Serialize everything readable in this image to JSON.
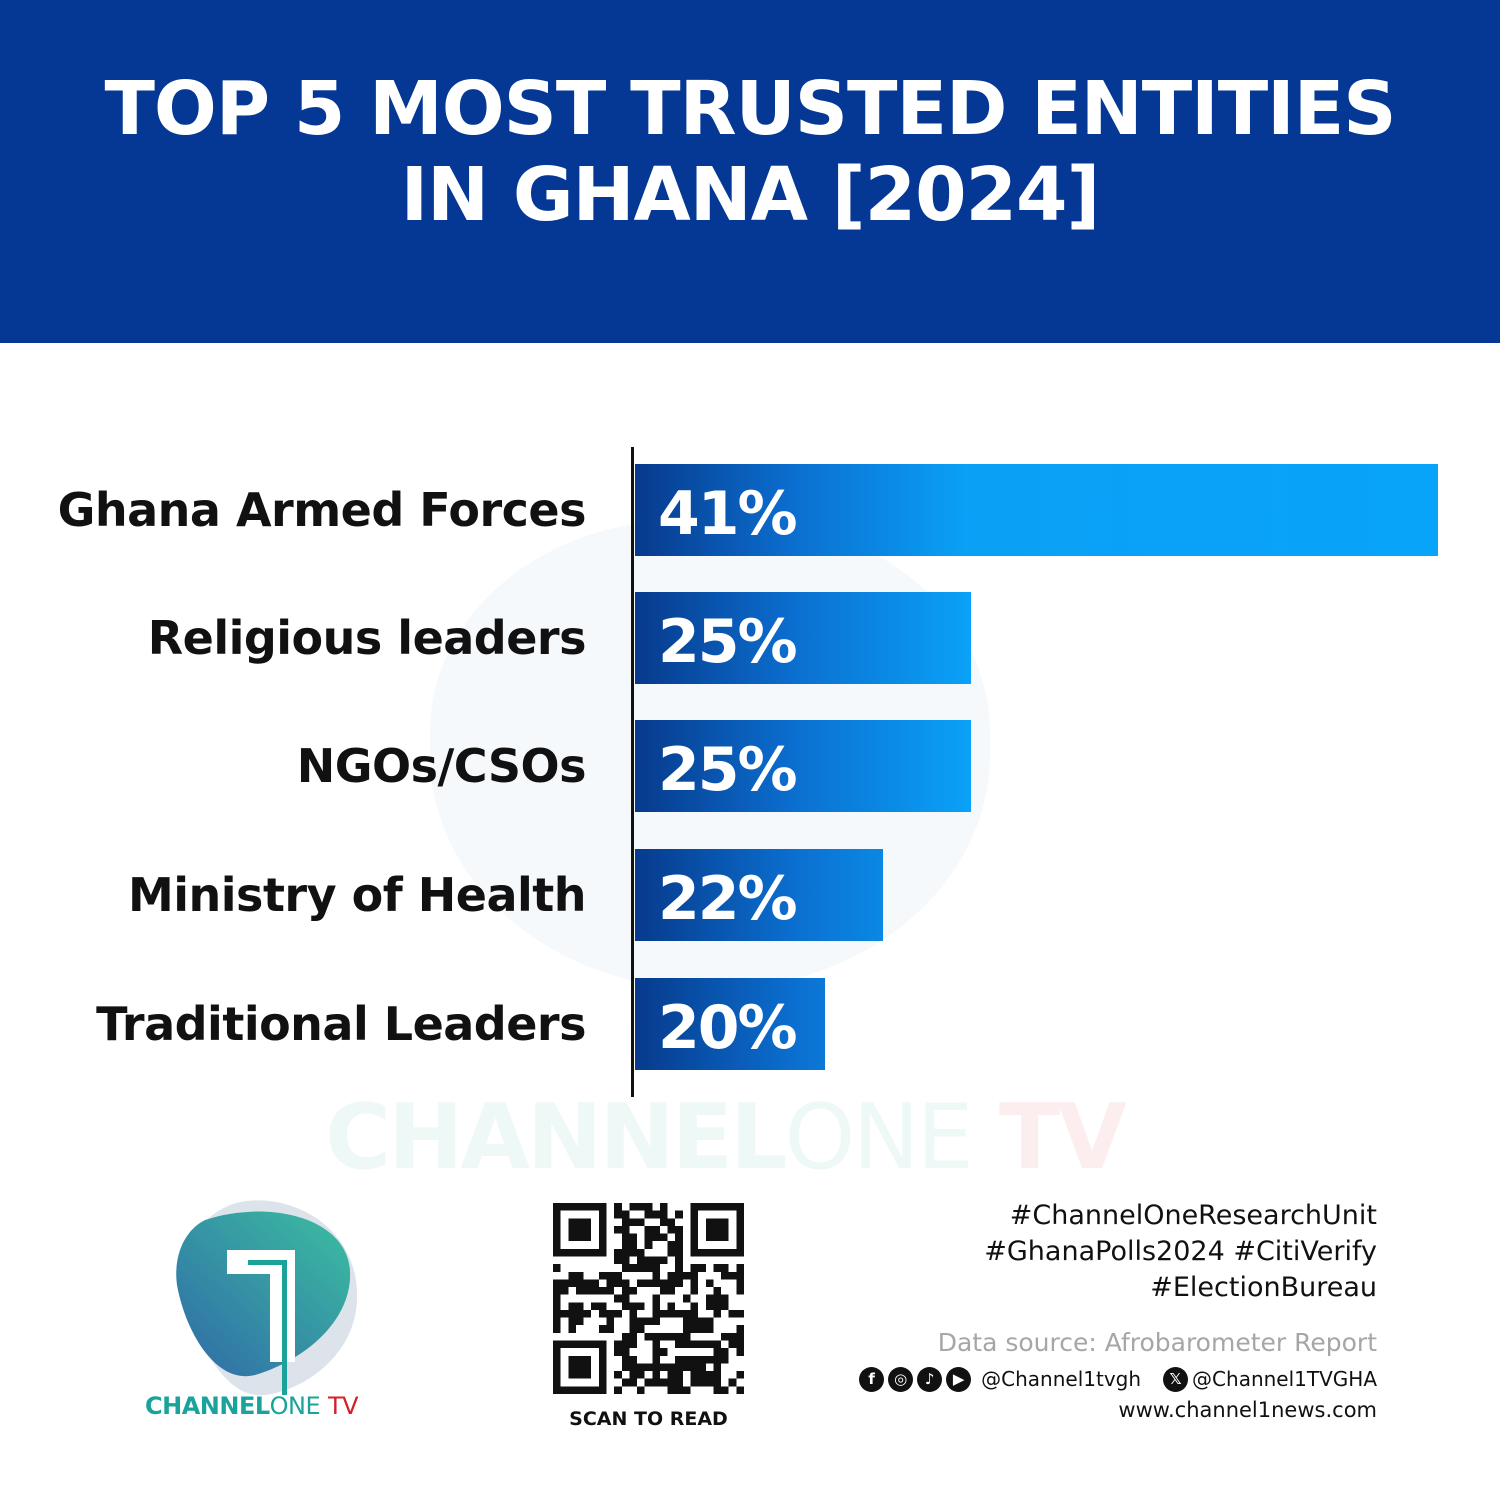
{
  "header": {
    "title_line1": "TOP 5 MOST TRUSTED ENTITIES",
    "title_line2": "IN GHANA [2024]"
  },
  "chart_data": {
    "type": "bar",
    "orientation": "horizontal",
    "title": "TOP 5 MOST TRUSTED ENTITIES IN GHANA [2024]",
    "categories": [
      "Ghana Armed Forces",
      "Religious leaders",
      "NGOs/CSOs",
      "Ministry of Health",
      "Traditional Leaders"
    ],
    "values": [
      41,
      25,
      25,
      22,
      20
    ],
    "value_labels": [
      "41%",
      "25%",
      "25%",
      "22%",
      "20%"
    ],
    "unit": "%",
    "grid": false,
    "bar_color": "#08a4fa",
    "bar_gradient_start": "#073a8c"
  },
  "watermark": {
    "brand": "CHANNEL",
    "brand2": "ONE",
    "brand3": "TV"
  },
  "logo": {
    "brand": "CHANNEL",
    "brand2": "ONE",
    "brand3": "TV",
    "color": "#1aa39a",
    "tv_color": "#d32027"
  },
  "qr": {
    "caption": "SCAN TO READ"
  },
  "footer": {
    "hashtags": [
      "#ChannelOneResearchUnit",
      "#GhanaPolls2024 #CitiVerify",
      "#ElectionBureau"
    ],
    "source": "Data source: Afrobarometer Report",
    "social_icons": [
      "facebook-icon",
      "instagram-icon",
      "tiktok-icon",
      "youtube-icon"
    ],
    "handle": "@Channel1tvgh",
    "x_handle": "@Channel1TVGHA",
    "website": "www.channel1news.com"
  },
  "colors": {
    "header_bg": "#043894"
  }
}
